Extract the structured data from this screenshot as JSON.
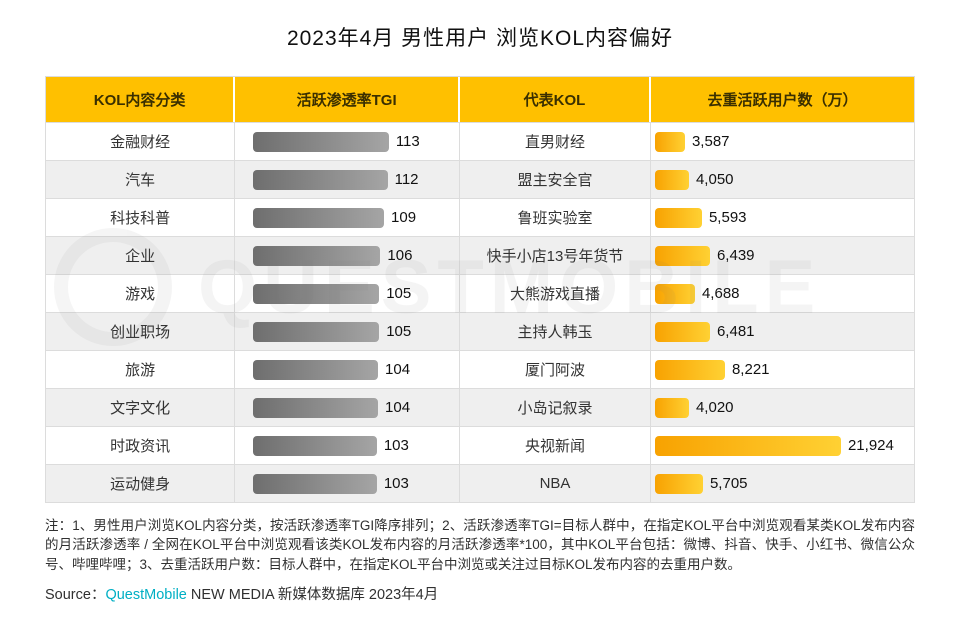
{
  "title": "2023年4月 男性用户 浏览KOL内容偏好",
  "watermark": {
    "text": "QUESTMOBILE"
  },
  "table": {
    "headers": [
      "KOL内容分类",
      "活跃渗透率TGI",
      "代表KOL",
      "去重活跃用户数（万）"
    ],
    "rows": [
      {
        "category": "金融财经",
        "tgi": 113,
        "kol": "直男财经",
        "users": "3,587",
        "users_val": 3587
      },
      {
        "category": "汽车",
        "tgi": 112,
        "kol": "盟主安全官",
        "users": "4,050",
        "users_val": 4050
      },
      {
        "category": "科技科普",
        "tgi": 109,
        "kol": "鲁班实验室",
        "users": "5,593",
        "users_val": 5593
      },
      {
        "category": "企业",
        "tgi": 106,
        "kol": "快手小店13号年货节",
        "users": "6,439",
        "users_val": 6439
      },
      {
        "category": "游戏",
        "tgi": 105,
        "kol": "大熊游戏直播",
        "users": "4,688",
        "users_val": 4688
      },
      {
        "category": "创业职场",
        "tgi": 105,
        "kol": "主持人韩玉",
        "users": "6,481",
        "users_val": 6481
      },
      {
        "category": "旅游",
        "tgi": 104,
        "kol": "厦门阿波",
        "users": "8,221",
        "users_val": 8221
      },
      {
        "category": "文字文化",
        "tgi": 104,
        "kol": "小岛记叙录",
        "users": "4,020",
        "users_val": 4020
      },
      {
        "category": "时政资讯",
        "tgi": 103,
        "kol": "央视新闻",
        "users": "21,924",
        "users_val": 21924
      },
      {
        "category": "运动健身",
        "tgi": 103,
        "kol": "NBA",
        "users": "5,705",
        "users_val": 5705
      }
    ]
  },
  "notes": "注：1、男性用户浏览KOL内容分类，按活跃渗透率TGI降序排列；2、活跃渗透率TGI=目标人群中，在指定KOL平台中浏览观看某类KOL发布内容的月活跃渗透率 / 全网在KOL平台中浏览观看该类KOL发布内容的月活跃渗透率*100，其中KOL平台包括：微博、抖音、快手、小红书、微信公众号、哔哩哔哩；3、去重活跃用户数：目标人群中，在指定KOL平台中浏览或关注过目标KOL发布内容的去重用户数。",
  "source": {
    "prefix": "Source：",
    "brand": "QuestMobile",
    "suffix": " NEW MEDIA 新媒体数据库 2023年4月"
  },
  "colors": {
    "header_bg": "#FFC000",
    "tgi_bar_dark": "#6e6e6e",
    "tgi_bar_light": "#a5a5a5",
    "users_bar_dark": "#f8a201",
    "users_bar_light": "#ffd133",
    "brand_teal": "#00afc4",
    "row_alt_bg": "#efefef"
  },
  "chart_data": {
    "type": "table",
    "title": "2023年4月 男性用户 浏览KOL内容偏好",
    "columns": [
      "KOL内容分类",
      "活跃渗透率TGI",
      "代表KOL",
      "去重活跃用户数（万）"
    ],
    "categories": [
      "金融财经",
      "汽车",
      "科技科普",
      "企业",
      "游戏",
      "创业职场",
      "旅游",
      "文字文化",
      "时政资讯",
      "运动健身"
    ],
    "series": [
      {
        "name": "活跃渗透率TGI",
        "type": "bar",
        "values": [
          113,
          112,
          109,
          106,
          105,
          105,
          104,
          104,
          103,
          103
        ]
      },
      {
        "name": "去重活跃用户数（万）",
        "type": "bar",
        "values": [
          3587,
          4050,
          5593,
          6439,
          4688,
          6481,
          8221,
          4020,
          21924,
          5705
        ]
      }
    ],
    "representative_kol": [
      "直男财经",
      "盟主安全官",
      "鲁班实验室",
      "快手小店13号年货节",
      "大熊游戏直播",
      "主持人韩玉",
      "厦门阿波",
      "小岛记叙录",
      "央视新闻",
      "NBA"
    ],
    "sort": "按活跃渗透率TGI降序排列",
    "legend_position": "none",
    "grid": false
  }
}
